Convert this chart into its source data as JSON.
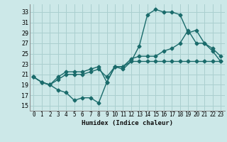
{
  "bg_color": "#cce8e8",
  "grid_color": "#aacfcf",
  "line_color": "#1a6b6b",
  "marker": "D",
  "markersize": 2.5,
  "linewidth": 1.0,
  "xlabel": "Humidex (Indice chaleur)",
  "xlim": [
    -0.5,
    23.5
  ],
  "ylim": [
    14,
    34.5
  ],
  "yticks": [
    15,
    17,
    19,
    21,
    23,
    25,
    27,
    29,
    31,
    33
  ],
  "xticks": [
    0,
    1,
    2,
    3,
    4,
    5,
    6,
    7,
    8,
    9,
    10,
    11,
    12,
    13,
    14,
    15,
    16,
    17,
    18,
    19,
    20,
    21,
    22,
    23
  ],
  "line1_x": [
    0,
    1,
    2,
    3,
    4,
    5,
    6,
    7,
    8,
    9,
    10,
    11,
    12,
    13,
    14,
    15,
    16,
    17,
    18,
    19,
    20,
    21,
    22,
    23
  ],
  "line1_y": [
    20.5,
    19.5,
    19.0,
    18.0,
    17.5,
    16.0,
    16.5,
    16.5,
    15.5,
    19.5,
    22.5,
    22.0,
    23.5,
    26.5,
    32.5,
    33.5,
    33.0,
    33.0,
    32.5,
    29.0,
    29.5,
    27.0,
    25.5,
    23.5
  ],
  "line2_x": [
    0,
    1,
    2,
    3,
    4,
    5,
    6,
    7,
    8,
    9,
    10,
    11,
    12,
    13,
    14,
    15,
    16,
    17,
    18,
    19,
    20,
    21,
    22,
    23
  ],
  "line2_y": [
    20.5,
    19.5,
    19.0,
    20.5,
    21.5,
    21.5,
    21.5,
    22.0,
    22.5,
    19.5,
    22.5,
    22.5,
    24.0,
    24.5,
    24.5,
    24.5,
    25.5,
    26.0,
    27.0,
    29.5,
    27.0,
    27.0,
    26.0,
    24.5
  ],
  "line3_x": [
    0,
    1,
    2,
    3,
    4,
    5,
    6,
    7,
    8,
    9,
    10,
    11,
    12,
    13,
    14,
    15,
    16,
    17,
    18,
    19,
    20,
    21,
    22,
    23
  ],
  "line3_y": [
    20.5,
    19.5,
    19.0,
    20.0,
    21.0,
    21.0,
    21.0,
    21.5,
    22.0,
    20.5,
    22.5,
    22.5,
    23.5,
    23.5,
    23.5,
    23.5,
    23.5,
    23.5,
    23.5,
    23.5,
    23.5,
    23.5,
    23.5,
    23.5
  ]
}
